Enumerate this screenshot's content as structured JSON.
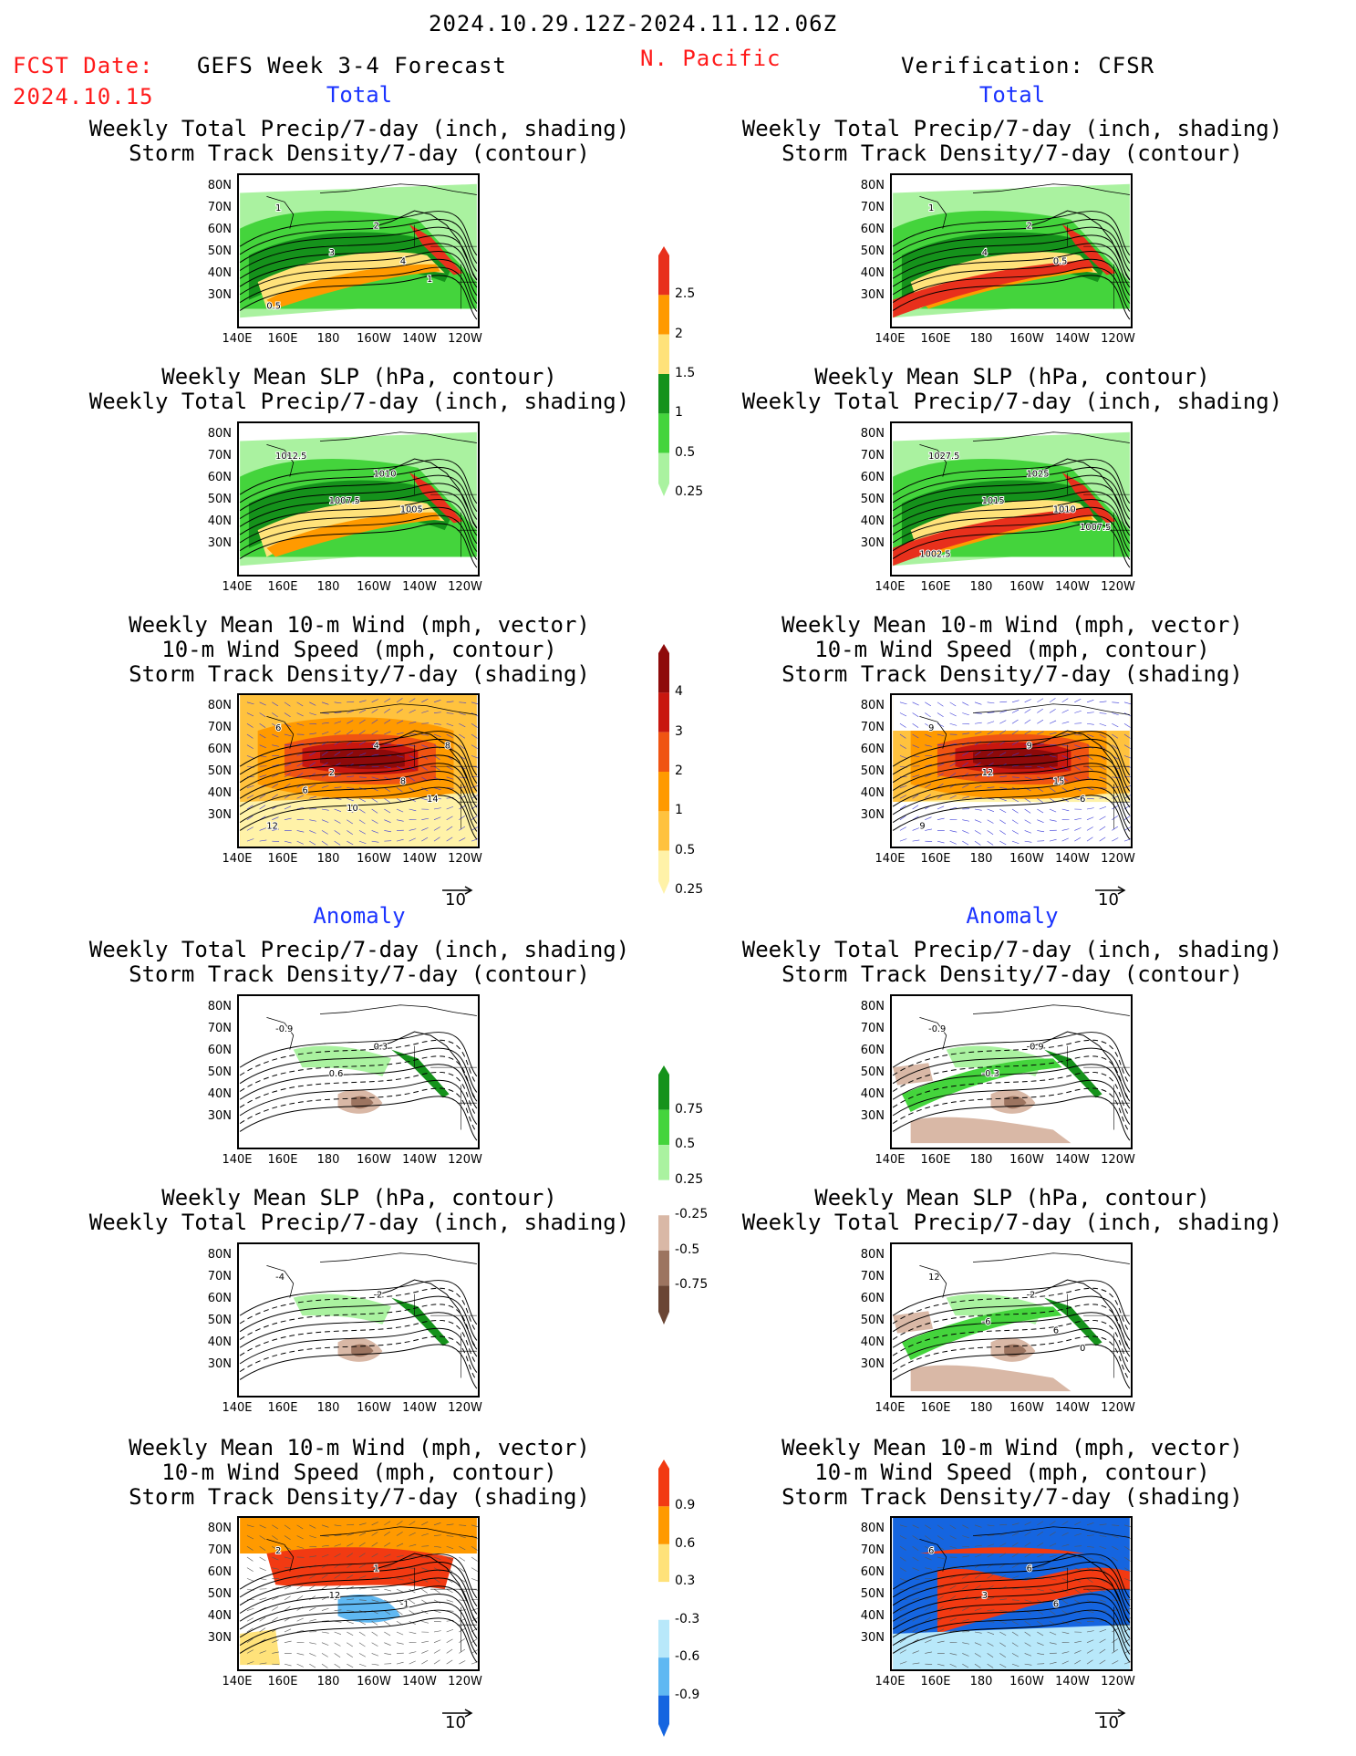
{
  "header": {
    "period": "2024.10.29.12Z-2024.11.12.06Z",
    "fcst_label": "FCST Date:",
    "fcst_date": "2024.10.15",
    "product": "GEFS Week 3-4 Forecast",
    "region": "N. Pacific",
    "verification": "Verification: CFSR"
  },
  "sections": {
    "total_left": "Total",
    "total_right": "Total",
    "anomaly_left": "Anomaly",
    "anomaly_right": "Anomaly"
  },
  "panel_titles": {
    "precip_storm": [
      "Weekly Total Precip/7-day (inch, shading)",
      "Storm Track Density/7-day (contour)"
    ],
    "slp_precip": [
      "Weekly Mean SLP (hPa, contour)",
      "Weekly Total Precip/7-day (inch, shading)"
    ],
    "wind_storm": [
      "Weekly Mean 10-m Wind (mph, vector)",
      "10-m Wind Speed (mph, contour)",
      "Storm Track Density/7-day (shading)"
    ]
  },
  "axes": {
    "lat_ticks": [
      "80N",
      "70N",
      "60N",
      "50N",
      "40N",
      "30N"
    ],
    "lon_ticks": [
      "140E",
      "160E",
      "180",
      "160W",
      "140W",
      "120W"
    ]
  },
  "vector_reference": "10",
  "colorbars": {
    "precip_total": {
      "labels": [
        "2.5",
        "2",
        "1.5",
        "1",
        "0.5",
        "0.25"
      ],
      "colors": [
        "#e8301c",
        "#ff9a00",
        "#ffe27a",
        "#15921b",
        "#44d43c",
        "#aaf2a0"
      ]
    },
    "storm_total": {
      "labels": [
        "4",
        "3",
        "2",
        "1",
        "0.5",
        "0.25"
      ],
      "colors": [
        "#8e0a0a",
        "#c8170f",
        "#f05412",
        "#ff9a00",
        "#ffc23e",
        "#fff2a8"
      ]
    },
    "precip_anom": {
      "labels": [
        "0.75",
        "0.5",
        "0.25",
        "-0.25",
        "-0.5",
        "-0.75"
      ],
      "colors": [
        "#15921b",
        "#44d43c",
        "#aaf2a0",
        "#ffffff",
        "#d9b8a6",
        "#9c7460",
        "#6a4534"
      ]
    },
    "storm_anom": {
      "labels": [
        "0.9",
        "0.6",
        "0.3",
        "-0.3",
        "-0.6",
        "-0.9"
      ],
      "colors": [
        "#f23a12",
        "#ff9a00",
        "#ffe27a",
        "#ffffff",
        "#b8e8fa",
        "#5fb8f2",
        "#1565e0"
      ]
    }
  },
  "panels": {
    "p1_labels": [
      "1",
      "2",
      "3",
      "4",
      "1",
      "0.5"
    ],
    "p2_labels": [
      "1012.5",
      "1010",
      "1007.5",
      "1005"
    ],
    "p3_labels": [
      "6",
      "4",
      "2",
      "8",
      "14",
      "12",
      "10",
      "6",
      "8"
    ],
    "p4_labels": [
      "1",
      "2",
      "4",
      "0.5"
    ],
    "p5_labels": [
      "1027.5",
      "1025",
      "1015",
      "1010",
      "1007.5",
      "1002.5"
    ],
    "p6_labels": [
      "9",
      "9",
      "12",
      "15",
      "6",
      "9"
    ],
    "p7_labels": [
      "-0.9",
      "0.3",
      "0.6"
    ],
    "p8_labels": [
      "-0.9",
      "-0.9",
      "-0.3"
    ],
    "p9_labels": [
      "-4",
      "-2"
    ],
    "p10_labels": [
      "12",
      "-2",
      "-6",
      "6",
      "0"
    ],
    "p11_labels": [
      "2",
      "1",
      "12",
      "-1"
    ],
    "p12_labels": [
      "6",
      "6",
      "3",
      "6"
    ]
  }
}
